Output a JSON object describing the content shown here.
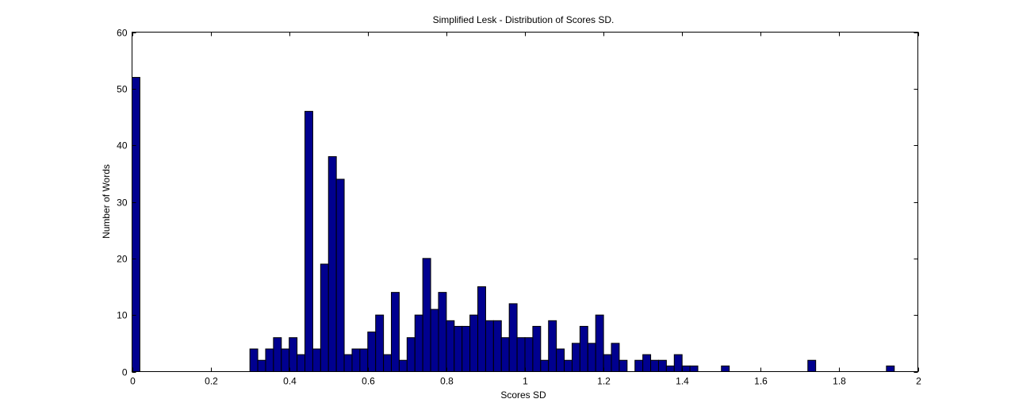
{
  "chart_data": {
    "type": "bar",
    "title": "Simplified Lesk - Distribution of Scores SD.",
    "xlabel": "Scores SD",
    "ylabel": "Number of Words",
    "xlim": [
      0,
      2
    ],
    "ylim": [
      0,
      60
    ],
    "xticks": [
      0,
      0.2,
      0.4,
      0.6,
      0.8,
      1,
      1.2,
      1.4,
      1.6,
      1.8,
      2
    ],
    "xtick_labels": [
      "0",
      "0.2",
      "0.4",
      "0.6",
      "0.8",
      "1",
      "1.2",
      "1.4",
      "1.6",
      "1.8",
      "2"
    ],
    "yticks": [
      0,
      10,
      20,
      30,
      40,
      50,
      60
    ],
    "ytick_labels": [
      "0",
      "10",
      "20",
      "30",
      "40",
      "50",
      "60"
    ],
    "bin_start": 0,
    "bin_width": 0.02,
    "values": [
      52,
      0,
      0,
      0,
      0,
      0,
      0,
      0,
      0,
      0,
      0,
      0,
      0,
      0,
      0,
      4,
      2,
      4,
      6,
      4,
      6,
      3,
      46,
      4,
      19,
      38,
      34,
      3,
      4,
      4,
      7,
      10,
      3,
      14,
      2,
      6,
      10,
      20,
      11,
      14,
      9,
      8,
      8,
      10,
      15,
      9,
      9,
      6,
      12,
      6,
      6,
      8,
      2,
      9,
      4,
      2,
      5,
      8,
      5,
      10,
      3,
      5,
      2,
      0,
      2,
      3,
      2,
      2,
      1,
      3,
      1,
      1,
      0,
      0,
      0,
      1,
      0,
      0,
      0,
      0,
      0,
      0,
      0,
      0,
      0,
      0,
      2,
      0,
      0,
      0,
      0,
      0,
      0,
      0,
      0,
      0,
      1,
      0,
      0,
      0
    ],
    "bar_color": "#00008f",
    "bar_edge_color": "#000000",
    "grid": false
  }
}
